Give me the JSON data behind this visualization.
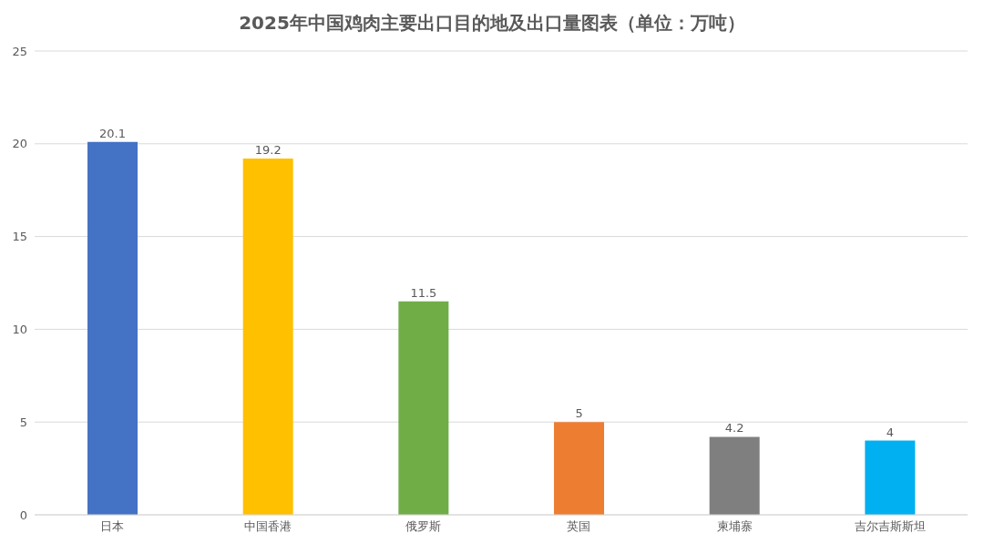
{
  "chart_data": {
    "type": "bar",
    "title": "2025年中国鸡肉主要出口目的地及出口量图表（单位：万吨）",
    "categories": [
      "日本",
      "中国香港",
      "俄罗斯",
      "英国",
      "柬埔寨",
      "吉尔吉斯斯坦"
    ],
    "values": [
      20.1,
      19.2,
      11.5,
      5,
      4.2,
      4
    ],
    "colors": [
      "#4472c4",
      "#ffc000",
      "#70ad47",
      "#ed7d31",
      "#7f7f7f",
      "#00b0f0"
    ],
    "ylim": [
      0,
      25
    ],
    "yticks": [
      0,
      5,
      10,
      15,
      20,
      25
    ],
    "grid": "y",
    "data_labels": true
  }
}
